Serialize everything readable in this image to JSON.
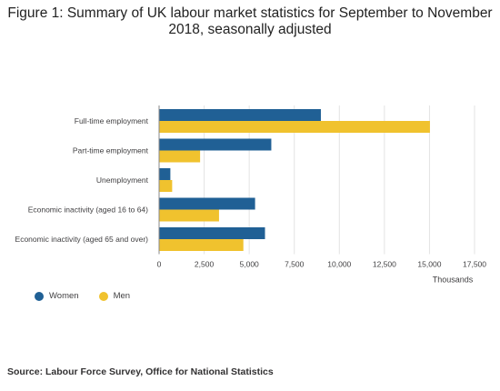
{
  "header": {
    "title": "Figure 1: Summary of UK labour market statistics for September to November 2018, seasonally adjusted"
  },
  "chart_data": {
    "type": "bar",
    "orientation": "horizontal",
    "categories": [
      "Full-time employment",
      "Part-time employment",
      "Unemployment",
      "Economic inactivity (aged 16 to 64)",
      "Economic inactivity (aged 65 and over)"
    ],
    "series": [
      {
        "name": "Women",
        "color": "#206095",
        "values": [
          8950,
          6200,
          600,
          5300,
          5850
        ]
      },
      {
        "name": "Men",
        "color": "#F0C22E",
        "values": [
          15000,
          2250,
          700,
          3300,
          4650
        ]
      }
    ],
    "xlim": [
      0,
      17500
    ],
    "xticks": [
      0,
      2500,
      5000,
      7500,
      10000,
      12500,
      15000,
      17500
    ],
    "xtick_labels": [
      "0",
      "2,500",
      "5,000",
      "7,500",
      "10,000",
      "12,500",
      "15,000",
      "17,500"
    ],
    "xlabel": "Thousands",
    "legend_position": "bottom-left",
    "grid": true
  },
  "legend": {
    "items": [
      {
        "label": "Women",
        "color": "#206095"
      },
      {
        "label": "Men",
        "color": "#F0C22E"
      }
    ]
  },
  "footer": {
    "source": "Source: Labour Force Survey, Office for National Statistics"
  }
}
